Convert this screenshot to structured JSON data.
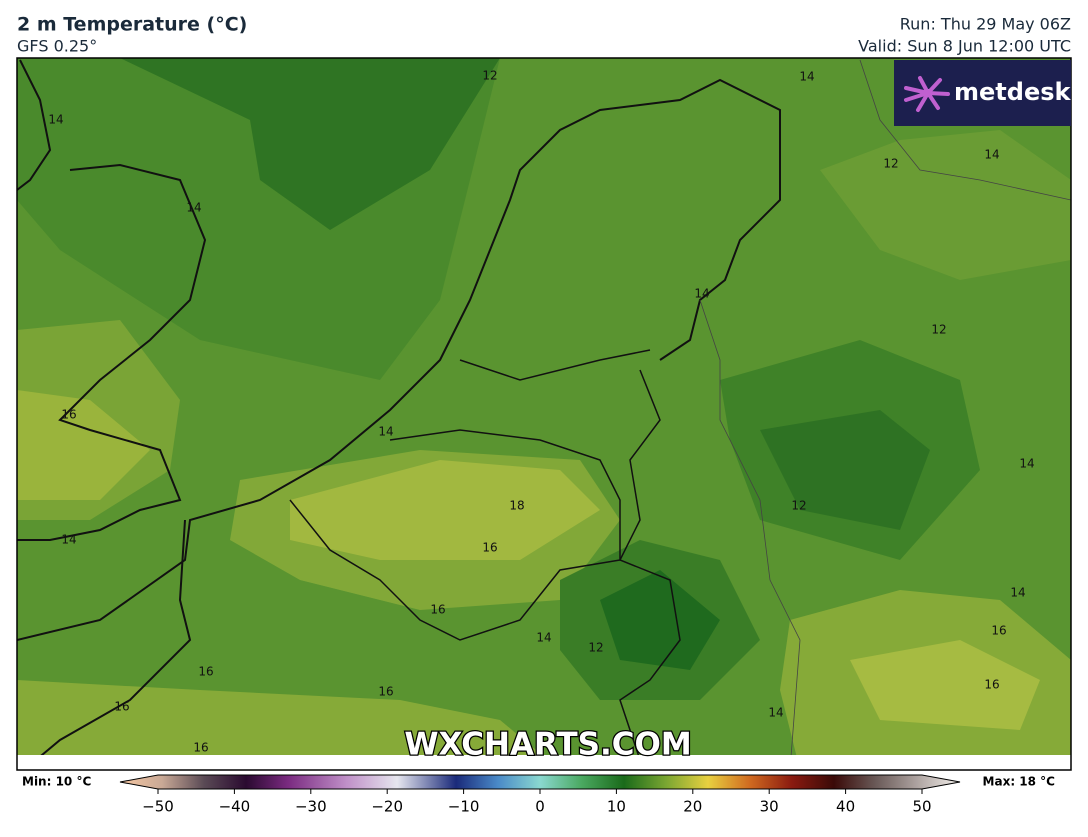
{
  "header": {
    "title": "2 m Temperature (°C)",
    "subtitle": "GFS 0.25°",
    "run": "Run: Thu 29 May 06Z",
    "valid": "Valid: Sun 8 Jun 12:00 UTC"
  },
  "logo": "metdesk",
  "watermark": "WXCHARTS.COM",
  "contour_labels": [
    12,
    14,
    14,
    12,
    14,
    14,
    14,
    12,
    16,
    14,
    14,
    18,
    12,
    14,
    16,
    14,
    16,
    14,
    12,
    16,
    16,
    16,
    16,
    16,
    14,
    16
  ],
  "colorbar": {
    "min_label": "Min: 10 °C",
    "max_label": "Max: 18 °C",
    "clim": [
      -50,
      50
    ],
    "ticks": [
      {
        "value": -50,
        "label": "−50"
      },
      {
        "value": -40,
        "label": "−40"
      },
      {
        "value": -30,
        "label": "−30"
      },
      {
        "value": -20,
        "label": "−20"
      },
      {
        "value": -10,
        "label": "−10"
      },
      0,
      10,
      20,
      30,
      40,
      50
    ]
  }
}
